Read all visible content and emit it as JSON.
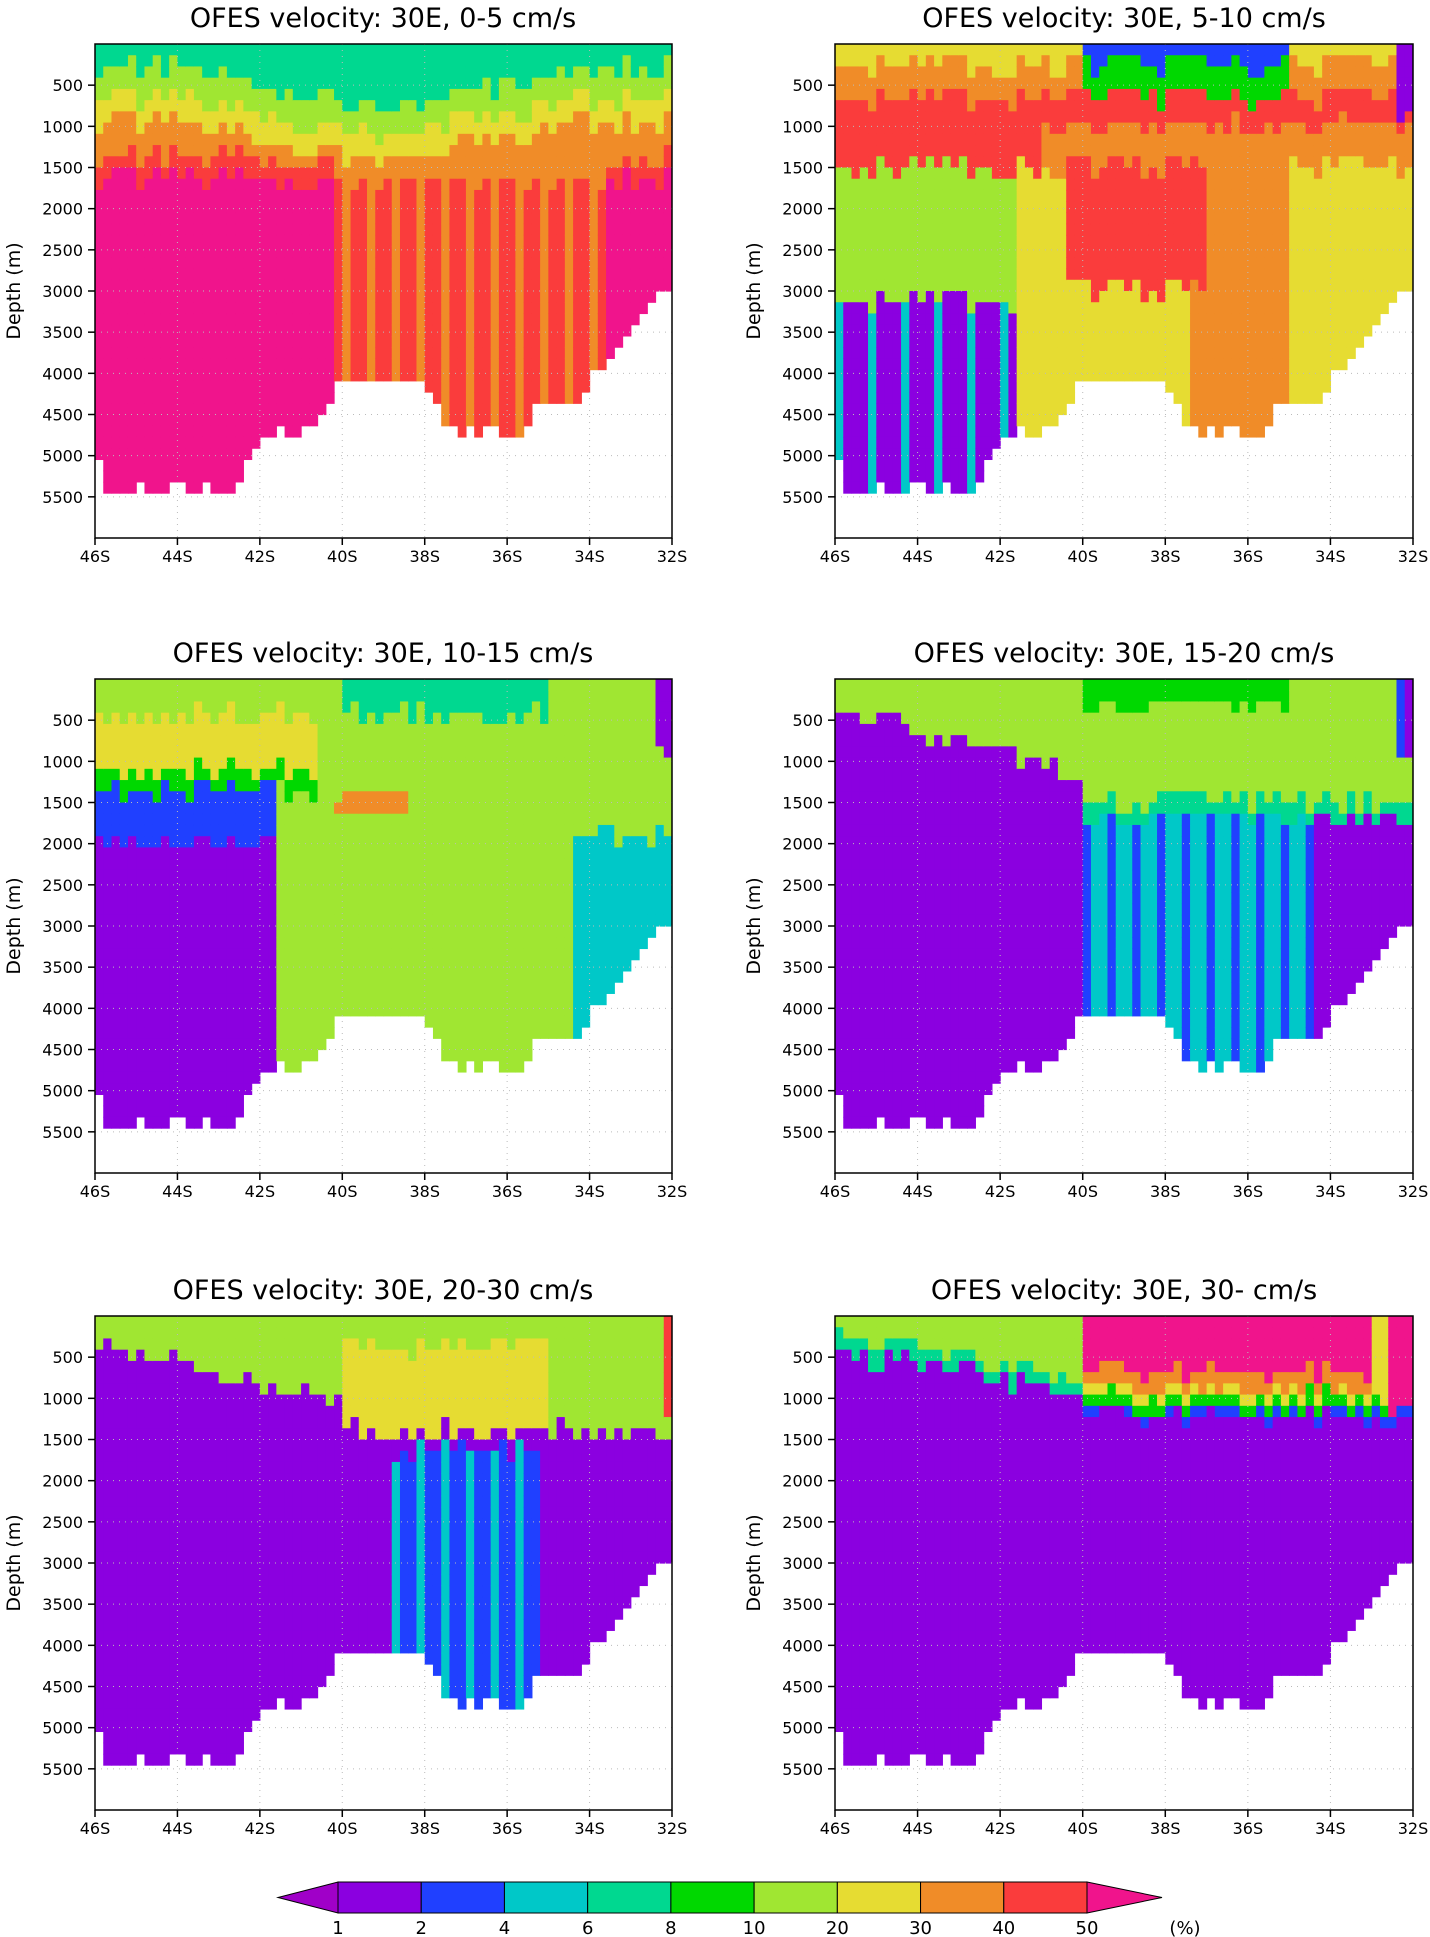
{
  "chart_data": {
    "type": "heatmap",
    "panels": [
      {
        "title": "OFES velocity: 30E, 0-5 cm/s",
        "pattern": "v0_5"
      },
      {
        "title": "OFES velocity: 30E, 5-10 cm/s",
        "pattern": "v5_10"
      },
      {
        "title": "OFES velocity: 30E, 10-15 cm/s",
        "pattern": "v10_15"
      },
      {
        "title": "OFES velocity: 30E, 15-20 cm/s",
        "pattern": "v15_20"
      },
      {
        "title": "OFES velocity: 30E, 20-30 cm/s",
        "pattern": "v20_30"
      },
      {
        "title": "OFES velocity: 30E, 30- cm/s",
        "pattern": "v30"
      }
    ],
    "x": {
      "range": [
        -46,
        -32
      ],
      "ticks": [
        -46,
        -44,
        -42,
        -40,
        -38,
        -36,
        -34,
        -32
      ],
      "tick_labels": [
        "46S",
        "44S",
        "42S",
        "40S",
        "38S",
        "36S",
        "34S",
        "32S"
      ]
    },
    "y": {
      "label": "Depth (m)",
      "range": [
        0,
        6000
      ],
      "inverted": true,
      "ticks": [
        500,
        1000,
        1500,
        2000,
        2500,
        3000,
        3500,
        4000,
        4500,
        5000,
        5500
      ],
      "tick_labels": [
        "500",
        "1000",
        "1500",
        "2000",
        "2500",
        "3000",
        "3500",
        "4000",
        "4500",
        "5000",
        "5500"
      ]
    },
    "grid": "dotted",
    "bottom_depth": [
      [
        -46.0,
        5050
      ],
      [
        -45.9,
        5050
      ],
      [
        -45.8,
        5400
      ],
      [
        -45.0,
        5400
      ],
      [
        -44.0,
        5400
      ],
      [
        -42.6,
        5400
      ],
      [
        -42.3,
        5050
      ],
      [
        -41.9,
        4750
      ],
      [
        -41.0,
        4750
      ],
      [
        -40.4,
        4450
      ],
      [
        -40.0,
        4100
      ],
      [
        -38.8,
        4100
      ],
      [
        -38.3,
        4100
      ],
      [
        -37.7,
        4400
      ],
      [
        -37.2,
        4750
      ],
      [
        -36.0,
        4750
      ],
      [
        -35.6,
        4750
      ],
      [
        -35.3,
        4400
      ],
      [
        -34.5,
        4400
      ],
      [
        -34.0,
        4100
      ],
      [
        -33.5,
        3800
      ],
      [
        -33.0,
        3400
      ],
      [
        -32.6,
        3200
      ],
      [
        -32.3,
        3000
      ],
      [
        -32.0,
        3000
      ]
    ],
    "colorbar": {
      "levels": [
        "1",
        "2",
        "4",
        "6",
        "8",
        "10",
        "20",
        "30",
        "40",
        "50"
      ],
      "colors": [
        "#a000c8",
        "#8b00e0",
        "#2040ff",
        "#00c8c8",
        "#00d890",
        "#00d800",
        "#a0e632",
        "#e6dc32",
        "#f08c28",
        "#fa3c3c",
        "#f0148c"
      ],
      "units": "(%)"
    }
  }
}
